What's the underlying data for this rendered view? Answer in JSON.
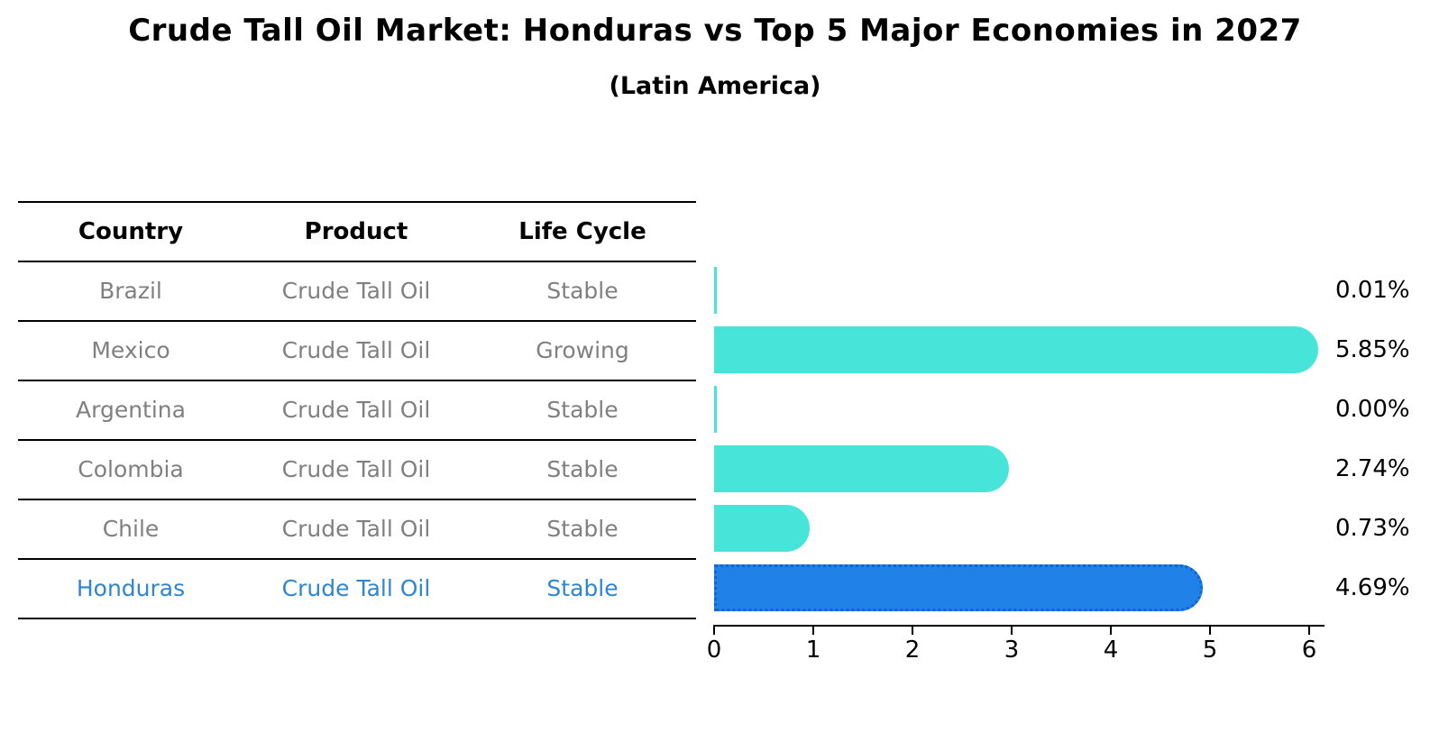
{
  "title": "Crude Tall Oil Market: Honduras vs Top 5 Major Economies in 2027",
  "subtitle": "(Latin America)",
  "table": {
    "headers": [
      "Country",
      "Product",
      "Life Cycle"
    ],
    "rows": [
      {
        "country": "Brazil",
        "product": "Crude Tall Oil",
        "life_cycle": "Stable",
        "highlight": false
      },
      {
        "country": "Mexico",
        "product": "Crude Tall Oil",
        "life_cycle": "Growing",
        "highlight": false
      },
      {
        "country": "Argentina",
        "product": "Crude Tall Oil",
        "life_cycle": "Stable",
        "highlight": false
      },
      {
        "country": "Colombia",
        "product": "Crude Tall Oil",
        "life_cycle": "Stable",
        "highlight": false
      },
      {
        "country": "Chile",
        "product": "Crude Tall Oil",
        "life_cycle": "Stable",
        "highlight": false
      },
      {
        "country": "Honduras",
        "product": "Crude Tall Oil",
        "life_cycle": "Stable",
        "highlight": true
      }
    ]
  },
  "chart_data": {
    "type": "bar",
    "orientation": "horizontal",
    "categories": [
      "Brazil",
      "Mexico",
      "Argentina",
      "Colombia",
      "Chile",
      "Honduras"
    ],
    "values": [
      0.01,
      5.85,
      0.0,
      2.74,
      0.73,
      4.69
    ],
    "value_labels": [
      "0.01%",
      "5.85%",
      "0.00%",
      "2.74%",
      "0.73%",
      "4.69%"
    ],
    "highlight_index": 5,
    "xlabel": "",
    "ylabel": "",
    "xlim": [
      0,
      6.15
    ],
    "xticks": [
      "0",
      "1",
      "2",
      "3",
      "4",
      "5",
      "6"
    ],
    "grid": false,
    "legend": "none",
    "bar_color": "#47E4DA",
    "highlight_color": "#2082E8"
  },
  "colors": {
    "highlight_text": "#2E86D0",
    "table_text": "#808080",
    "axis": "#000000"
  }
}
